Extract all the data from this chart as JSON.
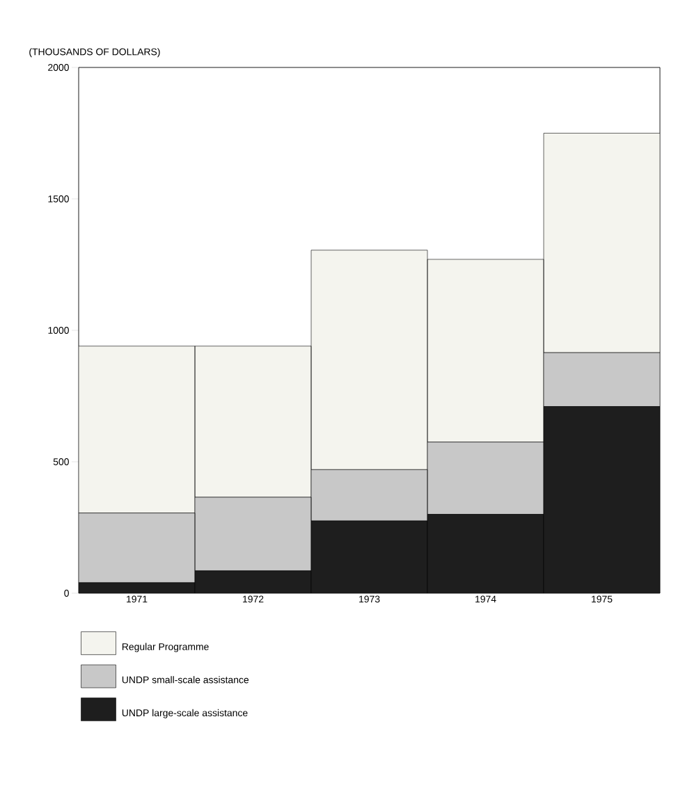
{
  "chart_data": {
    "type": "bar",
    "stacked": true,
    "ylabel": "(THOUSANDS OF DOLLARS)",
    "categories": [
      "1971",
      "1972",
      "1973",
      "1974",
      "1975"
    ],
    "series": [
      {
        "name": "UNDP large-scale assistance",
        "color": "#1e1e1e",
        "values": [
          40,
          85,
          275,
          300,
          710
        ]
      },
      {
        "name": "UNDP small-scale assistance",
        "color": "#c8c8c8",
        "values": [
          265,
          280,
          195,
          275,
          205
        ]
      },
      {
        "name": "Regular Programme",
        "color": "#f4f4ee",
        "values": [
          635,
          575,
          835,
          695,
          835
        ]
      }
    ],
    "ylim": [
      0,
      2000
    ],
    "yticks": [
      0,
      500,
      1000,
      1500,
      2000
    ],
    "legend": "bottom"
  }
}
